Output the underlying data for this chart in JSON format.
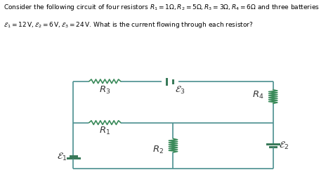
{
  "bg_color": "#ffffff",
  "wire_color": "#4a8f8f",
  "resistor_color": "#3a8a5a",
  "battery_color": "#3a7a5a",
  "text_color": "#000000",
  "label_color": "#404040",
  "title_fs": 6.5,
  "label_fs": 9.5
}
